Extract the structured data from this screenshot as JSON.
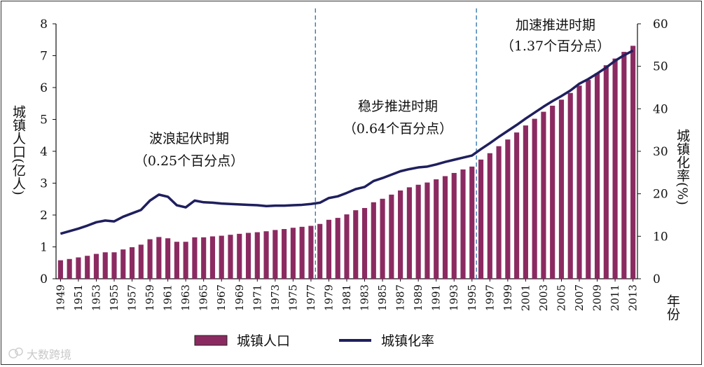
{
  "chart_data": {
    "type": "bar+line",
    "categories": [
      "1949",
      "1950",
      "1951",
      "1952",
      "1953",
      "1954",
      "1955",
      "1956",
      "1957",
      "1958",
      "1959",
      "1960",
      "1961",
      "1962",
      "1963",
      "1964",
      "1965",
      "1966",
      "1967",
      "1968",
      "1969",
      "1970",
      "1971",
      "1972",
      "1973",
      "1974",
      "1975",
      "1976",
      "1977",
      "1978",
      "1979",
      "1980",
      "1981",
      "1982",
      "1983",
      "1984",
      "1985",
      "1986",
      "1987",
      "1988",
      "1989",
      "1990",
      "1991",
      "1992",
      "1993",
      "1994",
      "1995",
      "1996",
      "1997",
      "1998",
      "1999",
      "2000",
      "2001",
      "2002",
      "2003",
      "2004",
      "2005",
      "2006",
      "2007",
      "2008",
      "2009",
      "2010",
      "2011",
      "2012",
      "2013"
    ],
    "x_tick_labels": [
      "1949",
      "1951",
      "1953",
      "1955",
      "1957",
      "1959",
      "1961",
      "1963",
      "1965",
      "1967",
      "1969",
      "1971",
      "1973",
      "1975",
      "1977",
      "1979",
      "1981",
      "1983",
      "1985",
      "1987",
      "1989",
      "1991",
      "1993",
      "1995",
      "1997",
      "1999",
      "2001",
      "2003",
      "2005",
      "2007",
      "2009",
      "2011",
      "2013"
    ],
    "series": [
      {
        "name": "城镇人口",
        "type": "bar",
        "axis": "left",
        "color": "#8b2a61",
        "values": [
          0.58,
          0.62,
          0.67,
          0.72,
          0.78,
          0.83,
          0.83,
          0.92,
          0.99,
          1.07,
          1.24,
          1.31,
          1.27,
          1.16,
          1.16,
          1.3,
          1.3,
          1.33,
          1.35,
          1.38,
          1.41,
          1.44,
          1.46,
          1.49,
          1.53,
          1.56,
          1.6,
          1.63,
          1.66,
          1.72,
          1.85,
          1.91,
          2.02,
          2.15,
          2.22,
          2.4,
          2.51,
          2.64,
          2.77,
          2.87,
          2.95,
          3.02,
          3.12,
          3.22,
          3.32,
          3.43,
          3.52,
          3.74,
          3.94,
          4.16,
          4.37,
          4.59,
          4.81,
          5.02,
          5.24,
          5.43,
          5.62,
          5.83,
          6.06,
          6.24,
          6.45,
          6.7,
          6.91,
          7.12,
          7.31
        ]
      },
      {
        "name": "城镇化率",
        "type": "line",
        "axis": "right",
        "color": "#1f1f5e",
        "values": [
          10.6,
          11.2,
          11.8,
          12.5,
          13.3,
          13.7,
          13.5,
          14.6,
          15.4,
          16.2,
          18.4,
          19.8,
          19.3,
          17.3,
          16.8,
          18.4,
          18.0,
          17.9,
          17.7,
          17.6,
          17.5,
          17.4,
          17.3,
          17.1,
          17.2,
          17.2,
          17.3,
          17.4,
          17.6,
          17.9,
          19.0,
          19.4,
          20.2,
          21.1,
          21.6,
          23.0,
          23.7,
          24.5,
          25.3,
          25.8,
          26.2,
          26.4,
          26.9,
          27.5,
          28.0,
          28.5,
          29.0,
          30.5,
          31.9,
          33.4,
          34.8,
          36.2,
          37.7,
          39.1,
          40.5,
          41.8,
          43.0,
          44.3,
          45.9,
          47.0,
          48.3,
          49.7,
          51.3,
          52.6,
          53.7
        ]
      }
    ],
    "y_left": {
      "label": "城镇人口(亿人)",
      "range": [
        0,
        8
      ],
      "ticks": [
        "0",
        "1",
        "2",
        "3",
        "4",
        "5",
        "6",
        "7",
        "8"
      ]
    },
    "y_right": {
      "label": "城镇化率(%)",
      "range": [
        0,
        60
      ],
      "ticks": [
        "0",
        "10",
        "20",
        "30",
        "40",
        "50",
        "60"
      ]
    },
    "x_axis_label": "年份",
    "period_dividers_after": [
      "1977",
      "1995"
    ],
    "annotations": [
      {
        "title": "波浪起伏时期",
        "sub": "（0.25个百分点）"
      },
      {
        "title": "稳步推进时期",
        "sub": "（0.64个百分点）"
      },
      {
        "title": "加速推进时期",
        "sub": "（1.37个百分点）"
      }
    ],
    "legend": {
      "position": "bottom-center",
      "items": [
        "城镇人口",
        "城镇化率"
      ]
    },
    "grid": false
  },
  "watermark": "大数跨境"
}
